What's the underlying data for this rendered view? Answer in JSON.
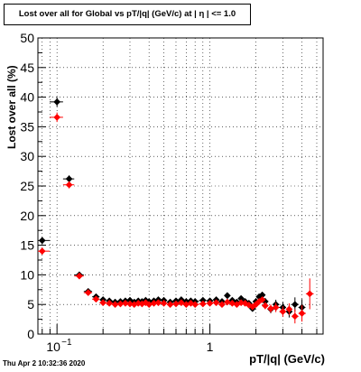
{
  "chart_data": {
    "type": "scatter",
    "title": "Lost over all for Global vs pT/|q| (GeV/c) at |  η | <= 1.0",
    "xlabel": "pT/|q| (GeV/c)",
    "ylabel": "Lost over all (%)",
    "x_scale": "log",
    "xlim": [
      0.075,
      5.5
    ],
    "ylim": [
      0,
      50
    ],
    "grid": true,
    "y_ticks": [
      "0",
      "5",
      "10",
      "15",
      "20",
      "25",
      "30",
      "35",
      "40",
      "45",
      "50"
    ],
    "x_ticks": [
      {
        "value": 0.1,
        "label": "10",
        "exponent": "−1"
      },
      {
        "value": 1,
        "label": "1",
        "exponent": ""
      }
    ],
    "series": [
      {
        "color": "#000000",
        "x": [
          0.08,
          0.1,
          0.12,
          0.14,
          0.16,
          0.18,
          0.2,
          0.22,
          0.24,
          0.26,
          0.28,
          0.3,
          0.32,
          0.34,
          0.36,
          0.38,
          0.4,
          0.43,
          0.46,
          0.5,
          0.55,
          0.6,
          0.65,
          0.7,
          0.75,
          0.8,
          0.9,
          1.0,
          1.1,
          1.2,
          1.3,
          1.4,
          1.5,
          1.6,
          1.7,
          1.8,
          1.9,
          2.0,
          2.1,
          2.2,
          2.3,
          2.5,
          2.7,
          3.0,
          3.3,
          3.6,
          4.0
        ],
        "y": [
          15.8,
          39.2,
          26.2,
          10.0,
          7.2,
          6.3,
          5.8,
          5.6,
          5.4,
          5.5,
          5.6,
          5.7,
          5.4,
          5.6,
          5.5,
          5.7,
          5.5,
          5.6,
          5.8,
          5.7,
          5.4,
          5.6,
          5.8,
          5.5,
          5.6,
          5.5,
          5.7,
          5.6,
          5.8,
          5.5,
          6.5,
          5.7,
          5.4,
          6.0,
          5.5,
          5.2,
          4.3,
          5.5,
          6.3,
          6.6,
          5.5,
          4.2,
          5.0,
          4.5,
          3.8,
          5.0,
          4.5
        ],
        "err": [
          0.6,
          0.8,
          0.6,
          0.3,
          0.2,
          0.2,
          0.15,
          0.15,
          0.15,
          0.15,
          0.15,
          0.15,
          0.15,
          0.15,
          0.15,
          0.15,
          0.15,
          0.15,
          0.15,
          0.15,
          0.15,
          0.15,
          0.15,
          0.15,
          0.15,
          0.15,
          0.2,
          0.2,
          0.2,
          0.25,
          0.25,
          0.3,
          0.3,
          0.3,
          0.35,
          0.4,
          0.4,
          0.4,
          0.5,
          0.5,
          0.6,
          0.7,
          0.8,
          0.9,
          1.0,
          1.2,
          1.4
        ]
      },
      {
        "color": "#ff0000",
        "x": [
          0.08,
          0.1,
          0.12,
          0.14,
          0.16,
          0.18,
          0.2,
          0.22,
          0.24,
          0.26,
          0.28,
          0.3,
          0.32,
          0.34,
          0.36,
          0.38,
          0.4,
          0.43,
          0.46,
          0.5,
          0.55,
          0.6,
          0.65,
          0.7,
          0.75,
          0.8,
          0.9,
          1.0,
          1.1,
          1.2,
          1.3,
          1.4,
          1.5,
          1.6,
          1.7,
          1.8,
          1.9,
          2.0,
          2.1,
          2.2,
          2.3,
          2.5,
          2.7,
          3.0,
          3.3,
          3.6,
          4.0,
          4.5
        ],
        "y": [
          14.0,
          36.6,
          25.2,
          9.8,
          7.0,
          5.9,
          5.3,
          5.2,
          5.0,
          5.1,
          5.2,
          5.1,
          5.0,
          5.2,
          5.1,
          5.3,
          5.0,
          5.2,
          5.3,
          5.2,
          5.0,
          5.1,
          5.3,
          5.0,
          5.2,
          5.0,
          5.1,
          5.2,
          5.3,
          5.0,
          5.4,
          5.2,
          5.0,
          5.3,
          5.2,
          4.9,
          4.6,
          5.0,
          5.5,
          5.8,
          4.8,
          4.3,
          4.5,
          3.8,
          4.2,
          3.0,
          3.5,
          6.8
        ],
        "err": [
          0.6,
          0.8,
          0.6,
          0.3,
          0.2,
          0.2,
          0.15,
          0.15,
          0.15,
          0.15,
          0.15,
          0.15,
          0.15,
          0.15,
          0.15,
          0.15,
          0.15,
          0.15,
          0.15,
          0.15,
          0.15,
          0.15,
          0.15,
          0.15,
          0.15,
          0.15,
          0.2,
          0.2,
          0.2,
          0.25,
          0.25,
          0.3,
          0.3,
          0.3,
          0.35,
          0.4,
          0.4,
          0.4,
          0.5,
          0.5,
          0.6,
          0.7,
          0.8,
          0.9,
          1.0,
          1.2,
          1.4,
          2.6
        ]
      }
    ]
  },
  "footer": {
    "timestamp": "Thu Apr  2 10:32:36 2020"
  }
}
